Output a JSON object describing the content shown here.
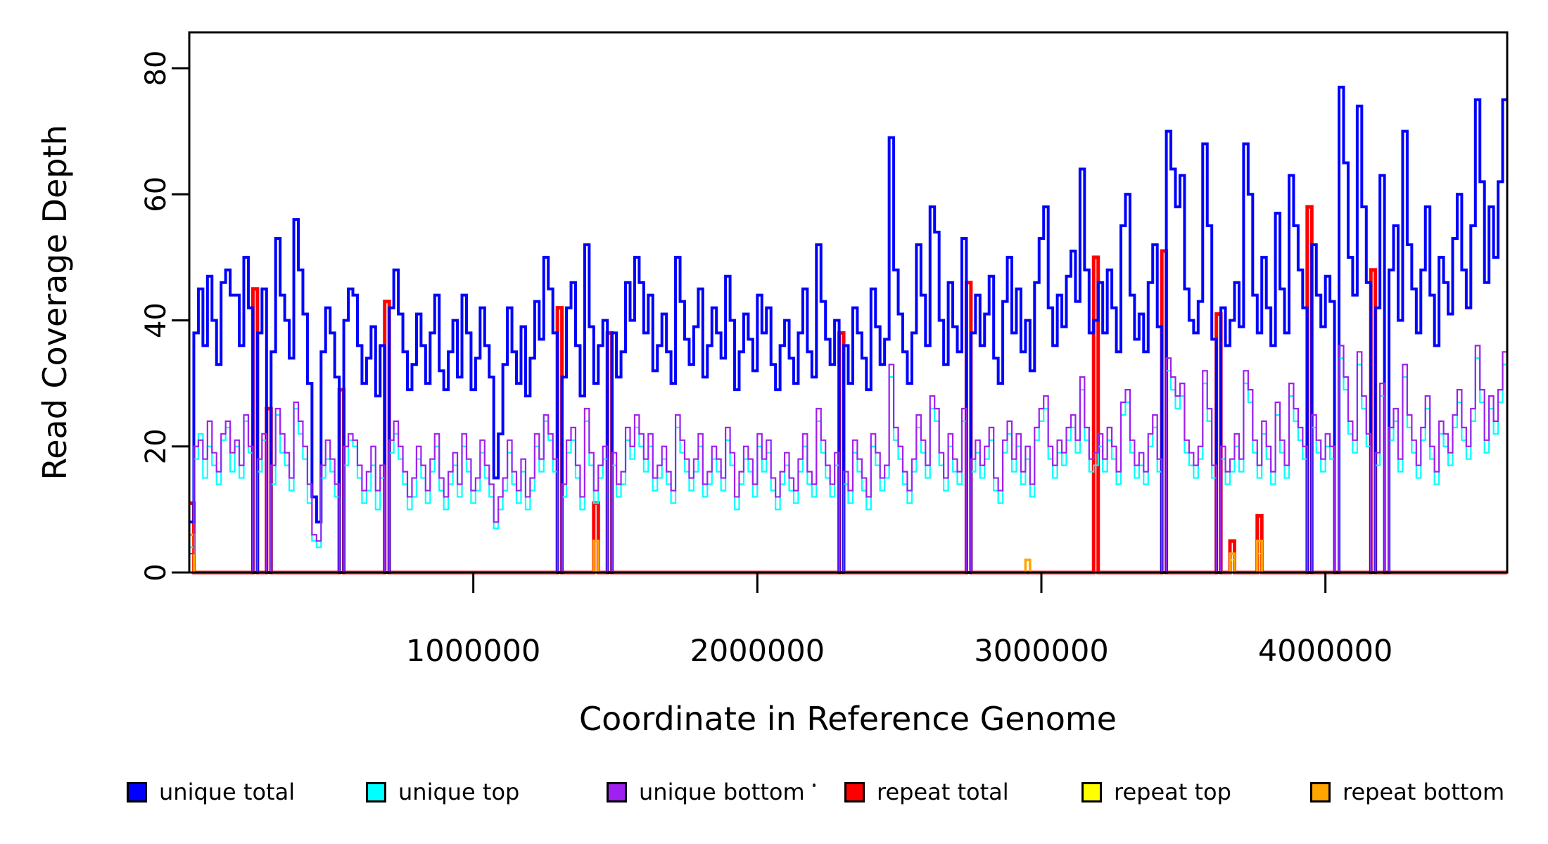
{
  "chart_data": {
    "type": "step-line",
    "title": "",
    "xlabel": "Coordinate in Reference Genome",
    "ylabel": "Read Coverage Depth",
    "xlim": [
      0,
      4640000
    ],
    "ylim": [
      0,
      85
    ],
    "grid": false,
    "legend_position": "bottom",
    "bin_size_bp": 16000,
    "n_bins": 290,
    "x_ticks": {
      "values": [
        1000000,
        2000000,
        3000000,
        4000000
      ],
      "labels": [
        "1000000",
        "2000000",
        "3000000",
        "4000000"
      ]
    },
    "y_ticks": {
      "values": [
        0,
        20,
        40,
        60,
        80
      ],
      "labels": [
        "0",
        "20",
        "40",
        "60",
        "80"
      ]
    },
    "series": [
      {
        "name": "repeat total",
        "color": "#FF0000",
        "line_width": 5,
        "values_sparse": [
          [
            0,
            11
          ],
          [
            14,
            45
          ],
          [
            17,
            26
          ],
          [
            33,
            29
          ],
          [
            43,
            43
          ],
          [
            81,
            42
          ],
          [
            89,
            11
          ],
          [
            92,
            38
          ],
          [
            143,
            38
          ],
          [
            171,
            46
          ],
          [
            199,
            50
          ],
          [
            214,
            51
          ],
          [
            226,
            41
          ],
          [
            229,
            5
          ],
          [
            235,
            9
          ],
          [
            246,
            58
          ],
          [
            260,
            48
          ]
        ]
      },
      {
        "name": "repeat top",
        "color": "#FFFF00",
        "line_width": 2,
        "values_sparse": [
          [
            229,
            2
          ],
          [
            235,
            3
          ]
        ]
      },
      {
        "name": "repeat bottom",
        "color": "#FFA500",
        "line_width": 3.5,
        "values_sparse": [
          [
            0,
            6
          ],
          [
            89,
            5
          ],
          [
            184,
            2
          ],
          [
            229,
            3
          ],
          [
            235,
            5
          ]
        ]
      },
      {
        "name": "unique total",
        "color": "#0000FF",
        "line_width": 4,
        "values": [
          8,
          38,
          45,
          36,
          47,
          40,
          33,
          46,
          48,
          44,
          44,
          36,
          50,
          42,
          0,
          38,
          45,
          0,
          35,
          53,
          44,
          40,
          34,
          56,
          48,
          41,
          30,
          12,
          8,
          35,
          42,
          38,
          31,
          0,
          40,
          45,
          44,
          36,
          30,
          34,
          39,
          28,
          36,
          0,
          42,
          48,
          41,
          35,
          29,
          33,
          41,
          36,
          30,
          38,
          44,
          32,
          29,
          35,
          40,
          31,
          44,
          38,
          29,
          34,
          42,
          36,
          31,
          15,
          22,
          33,
          42,
          35,
          30,
          39,
          28,
          34,
          43,
          37,
          50,
          45,
          38,
          0,
          31,
          42,
          46,
          36,
          28,
          52,
          39,
          30,
          36,
          40,
          0,
          38,
          31,
          35,
          46,
          40,
          50,
          46,
          38,
          44,
          32,
          36,
          41,
          35,
          30,
          50,
          43,
          37,
          33,
          39,
          45,
          31,
          36,
          42,
          38,
          34,
          47,
          40,
          29,
          35,
          41,
          37,
          32,
          44,
          38,
          42,
          33,
          29,
          36,
          40,
          34,
          30,
          38,
          45,
          35,
          31,
          52,
          43,
          37,
          33,
          40,
          0,
          36,
          30,
          42,
          38,
          34,
          29,
          45,
          39,
          33,
          37,
          69,
          48,
          41,
          35,
          30,
          38,
          52,
          44,
          36,
          58,
          54,
          40,
          33,
          46,
          39,
          35,
          53,
          0,
          38,
          44,
          36,
          41,
          47,
          34,
          30,
          43,
          50,
          38,
          45,
          35,
          40,
          32,
          46,
          53,
          58,
          42,
          36,
          44,
          39,
          47,
          51,
          43,
          64,
          48,
          38,
          40,
          46,
          38,
          48,
          42,
          35,
          55,
          60,
          44,
          37,
          41,
          35,
          46,
          52,
          39,
          0,
          70,
          64,
          58,
          63,
          45,
          40,
          38,
          43,
          68,
          55,
          37,
          0,
          42,
          36,
          40,
          46,
          39,
          68,
          60,
          44,
          38,
          50,
          42,
          36,
          57,
          45,
          38,
          63,
          55,
          48,
          42,
          0,
          52,
          44,
          39,
          47,
          43,
          0,
          77,
          65,
          50,
          44,
          74,
          58,
          46,
          0,
          42,
          63,
          0,
          48,
          55,
          40,
          70,
          52,
          45,
          38,
          48,
          58,
          44,
          36,
          50,
          46,
          41,
          53,
          60,
          48,
          42,
          55,
          75,
          62,
          46,
          58,
          50,
          62,
          75
        ]
      },
      {
        "name": "unique top",
        "color": "#00FFFF",
        "line_width": 2.2,
        "values": [
          4,
          18,
          22,
          15,
          20,
          17,
          14,
          21,
          23,
          16,
          20,
          15,
          24,
          19,
          0,
          16,
          21,
          0,
          14,
          25,
          19,
          17,
          13,
          26,
          22,
          18,
          11,
          5,
          4,
          15,
          18,
          16,
          12,
          0,
          17,
          21,
          20,
          15,
          11,
          13,
          17,
          10,
          15,
          0,
          19,
          22,
          18,
          14,
          10,
          12,
          18,
          15,
          11,
          16,
          20,
          13,
          10,
          14,
          17,
          12,
          20,
          16,
          11,
          13,
          19,
          15,
          12,
          7,
          10,
          13,
          19,
          14,
          11,
          16,
          10,
          13,
          20,
          16,
          24,
          21,
          16,
          0,
          12,
          19,
          21,
          15,
          10,
          24,
          17,
          11,
          15,
          18,
          0,
          17,
          12,
          14,
          21,
          18,
          23,
          20,
          16,
          20,
          13,
          15,
          18,
          14,
          11,
          23,
          19,
          16,
          13,
          16,
          20,
          12,
          14,
          18,
          16,
          13,
          21,
          17,
          10,
          14,
          18,
          16,
          12,
          20,
          16,
          19,
          13,
          10,
          14,
          17,
          13,
          11,
          16,
          20,
          14,
          12,
          24,
          19,
          15,
          12,
          17,
          0,
          14,
          11,
          19,
          16,
          13,
          10,
          20,
          17,
          13,
          15,
          31,
          21,
          18,
          14,
          11,
          16,
          23,
          19,
          15,
          26,
          24,
          17,
          13,
          20,
          16,
          14,
          24,
          0,
          16,
          19,
          15,
          18,
          21,
          13,
          11,
          19,
          22,
          16,
          20,
          14,
          18,
          12,
          21,
          24,
          26,
          18,
          15,
          19,
          17,
          21,
          23,
          19,
          29,
          21,
          16,
          17,
          20,
          16,
          21,
          18,
          14,
          25,
          27,
          19,
          15,
          17,
          14,
          20,
          23,
          16,
          0,
          32,
          29,
          26,
          28,
          19,
          17,
          15,
          18,
          30,
          24,
          15,
          0,
          18,
          14,
          16,
          20,
          16,
          30,
          27,
          19,
          15,
          22,
          18,
          14,
          25,
          19,
          15,
          28,
          24,
          21,
          18,
          0,
          23,
          19,
          16,
          20,
          18,
          0,
          34,
          29,
          22,
          19,
          33,
          26,
          20,
          0,
          17,
          28,
          0,
          21,
          24,
          16,
          31,
          23,
          19,
          15,
          21,
          26,
          18,
          14,
          22,
          20,
          17,
          23,
          27,
          21,
          18,
          24,
          34,
          27,
          19,
          26,
          22,
          27,
          33
        ]
      },
      {
        "name": "unique bottom",
        "color": "#A020F0",
        "line_width": 2.2,
        "values": [
          3,
          20,
          21,
          18,
          24,
          19,
          16,
          22,
          24,
          19,
          21,
          17,
          25,
          20,
          0,
          18,
          22,
          0,
          17,
          26,
          22,
          19,
          15,
          27,
          24,
          20,
          14,
          6,
          5,
          17,
          21,
          18,
          14,
          0,
          20,
          22,
          21,
          17,
          13,
          16,
          20,
          13,
          17,
          0,
          21,
          24,
          20,
          16,
          12,
          15,
          20,
          17,
          13,
          18,
          22,
          15,
          12,
          16,
          19,
          14,
          22,
          18,
          13,
          15,
          21,
          17,
          14,
          8,
          12,
          15,
          21,
          16,
          13,
          18,
          12,
          15,
          22,
          18,
          25,
          22,
          18,
          0,
          14,
          21,
          23,
          17,
          12,
          26,
          19,
          13,
          17,
          20,
          0,
          19,
          14,
          16,
          23,
          20,
          25,
          22,
          18,
          22,
          15,
          17,
          20,
          16,
          13,
          25,
          21,
          18,
          15,
          18,
          22,
          14,
          16,
          20,
          18,
          15,
          23,
          19,
          12,
          16,
          20,
          18,
          14,
          22,
          18,
          21,
          15,
          12,
          16,
          19,
          15,
          13,
          18,
          22,
          16,
          14,
          26,
          21,
          17,
          14,
          19,
          0,
          16,
          13,
          21,
          18,
          15,
          12,
          22,
          19,
          15,
          17,
          33,
          23,
          20,
          16,
          13,
          18,
          25,
          21,
          17,
          28,
          26,
          19,
          15,
          22,
          18,
          16,
          26,
          0,
          18,
          21,
          17,
          20,
          23,
          15,
          13,
          21,
          24,
          18,
          22,
          16,
          20,
          14,
          23,
          26,
          28,
          20,
          17,
          21,
          19,
          23,
          25,
          21,
          31,
          23,
          18,
          19,
          22,
          18,
          23,
          20,
          16,
          27,
          29,
          21,
          17,
          19,
          16,
          22,
          25,
          18,
          0,
          34,
          31,
          28,
          30,
          21,
          19,
          17,
          20,
          32,
          26,
          17,
          0,
          20,
          16,
          18,
          22,
          18,
          32,
          29,
          21,
          17,
          24,
          20,
          16,
          27,
          21,
          17,
          30,
          26,
          23,
          20,
          0,
          25,
          21,
          18,
          22,
          20,
          0,
          36,
          31,
          24,
          21,
          35,
          28,
          22,
          0,
          19,
          30,
          0,
          23,
          26,
          18,
          33,
          25,
          21,
          17,
          23,
          28,
          20,
          16,
          24,
          22,
          19,
          25,
          29,
          23,
          20,
          26,
          36,
          29,
          21,
          28,
          24,
          29,
          35
        ]
      }
    ]
  },
  "legend_order": [
    3,
    4,
    5,
    0,
    1,
    2
  ]
}
